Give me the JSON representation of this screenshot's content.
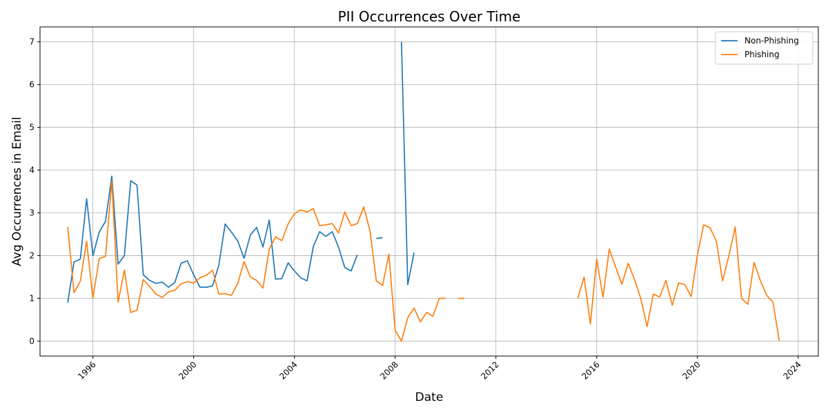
{
  "chart_data": {
    "type": "line",
    "title": "PII Occurrences Over Time",
    "xlabel": "Date",
    "ylabel": "Avg Occurrences in Email",
    "xlim": [
      1993.9,
      2024.8
    ],
    "ylim": [
      -0.35,
      7.35
    ],
    "x_ticks": [
      1996,
      2000,
      2004,
      2008,
      2012,
      2016,
      2020,
      2024
    ],
    "x_tick_labels": [
      "1996",
      "2000",
      "2004",
      "2008",
      "2012",
      "2016",
      "2020",
      "2024"
    ],
    "y_ticks": [
      0,
      1,
      2,
      3,
      4,
      5,
      6,
      7
    ],
    "y_tick_labels": [
      "0",
      "1",
      "2",
      "3",
      "4",
      "5",
      "6",
      "7"
    ],
    "grid": true,
    "legend_position": "top-right",
    "series": [
      {
        "name": "Non-Phishing",
        "color": "#1f77b4",
        "points": [
          [
            1995.0,
            0.9
          ],
          [
            1995.25,
            1.85
          ],
          [
            1995.5,
            1.92
          ],
          [
            1995.75,
            3.33
          ],
          [
            1996.0,
            2.0
          ],
          [
            1996.25,
            2.55
          ],
          [
            1996.5,
            2.8
          ],
          [
            1996.75,
            3.86
          ],
          [
            1997.0,
            1.8
          ],
          [
            1997.25,
            2.0
          ],
          [
            1997.5,
            3.75
          ],
          [
            1997.75,
            3.65
          ],
          [
            1998.0,
            1.55
          ],
          [
            1998.25,
            1.42
          ],
          [
            1998.5,
            1.35
          ],
          [
            1998.75,
            1.38
          ],
          [
            1999.0,
            1.26
          ],
          [
            1999.25,
            1.37
          ],
          [
            1999.5,
            1.82
          ],
          [
            1999.75,
            1.88
          ],
          [
            2000.0,
            1.55
          ],
          [
            2000.25,
            1.26
          ],
          [
            2000.5,
            1.26
          ],
          [
            2000.75,
            1.29
          ],
          [
            2001.0,
            1.78
          ],
          [
            2001.25,
            2.74
          ],
          [
            2001.5,
            2.55
          ],
          [
            2001.75,
            2.34
          ],
          [
            2002.0,
            1.94
          ],
          [
            2002.25,
            2.48
          ],
          [
            2002.5,
            2.66
          ],
          [
            2002.75,
            2.2
          ],
          [
            2003.0,
            2.83
          ],
          [
            2003.25,
            1.45
          ],
          [
            2003.5,
            1.46
          ],
          [
            2003.75,
            1.83
          ],
          [
            2004.0,
            1.64
          ],
          [
            2004.25,
            1.48
          ],
          [
            2004.5,
            1.41
          ],
          [
            2004.75,
            2.21
          ],
          [
            2005.0,
            2.56
          ],
          [
            2005.25,
            2.45
          ],
          [
            2005.5,
            2.56
          ],
          [
            2005.75,
            2.2
          ],
          [
            2006.0,
            1.72
          ],
          [
            2006.25,
            1.64
          ],
          [
            2006.5,
            2.02
          ],
          null,
          [
            2007.25,
            2.4
          ],
          [
            2007.5,
            2.42
          ],
          null,
          [
            2008.25,
            7.0
          ],
          [
            2008.5,
            1.32
          ],
          [
            2008.75,
            2.07
          ]
        ]
      },
      {
        "name": "Phishing",
        "color": "#ff7f0e",
        "points": [
          [
            1995.0,
            2.67
          ],
          [
            1995.25,
            1.13
          ],
          [
            1995.5,
            1.4
          ],
          [
            1995.75,
            2.34
          ],
          [
            1996.0,
            1.0
          ],
          [
            1996.25,
            1.93
          ],
          [
            1996.5,
            1.98
          ],
          [
            1996.75,
            3.74
          ],
          [
            1997.0,
            0.91
          ],
          [
            1997.25,
            1.66
          ],
          [
            1997.5,
            0.67
          ],
          [
            1997.75,
            0.72
          ],
          [
            1998.0,
            1.44
          ],
          [
            1998.25,
            1.28
          ],
          [
            1998.5,
            1.1
          ],
          [
            1998.75,
            1.02
          ],
          [
            1999.0,
            1.15
          ],
          [
            1999.25,
            1.19
          ],
          [
            1999.5,
            1.34
          ],
          [
            1999.75,
            1.39
          ],
          [
            2000.0,
            1.36
          ],
          [
            2000.25,
            1.48
          ],
          [
            2000.5,
            1.54
          ],
          [
            2000.75,
            1.66
          ],
          [
            2001.0,
            1.1
          ],
          [
            2001.25,
            1.11
          ],
          [
            2001.5,
            1.07
          ],
          [
            2001.75,
            1.35
          ],
          [
            2002.0,
            1.86
          ],
          [
            2002.25,
            1.5
          ],
          [
            2002.5,
            1.42
          ],
          [
            2002.75,
            1.24
          ],
          [
            2003.0,
            2.15
          ],
          [
            2003.25,
            2.44
          ],
          [
            2003.5,
            2.35
          ],
          [
            2003.75,
            2.74
          ],
          [
            2004.0,
            2.98
          ],
          [
            2004.25,
            3.07
          ],
          [
            2004.5,
            3.02
          ],
          [
            2004.75,
            3.1
          ],
          [
            2005.0,
            2.7
          ],
          [
            2005.25,
            2.72
          ],
          [
            2005.5,
            2.75
          ],
          [
            2005.75,
            2.53
          ],
          [
            2006.0,
            3.02
          ],
          [
            2006.25,
            2.7
          ],
          [
            2006.5,
            2.75
          ],
          [
            2006.75,
            3.14
          ],
          [
            2007.0,
            2.58
          ],
          [
            2007.25,
            1.41
          ],
          [
            2007.5,
            1.3
          ],
          [
            2007.75,
            2.03
          ],
          [
            2008.0,
            0.25
          ],
          [
            2008.25,
            0.0
          ],
          [
            2008.5,
            0.55
          ],
          [
            2008.75,
            0.77
          ],
          [
            2009.0,
            0.45
          ],
          [
            2009.25,
            0.67
          ],
          [
            2009.5,
            0.58
          ],
          [
            2009.75,
            1.0
          ],
          [
            2010.0,
            1.0
          ],
          null,
          [
            2010.5,
            1.0
          ],
          [
            2010.75,
            1.0
          ],
          null,
          [
            2015.25,
            1.0
          ],
          [
            2015.5,
            1.5
          ],
          [
            2015.75,
            0.4
          ],
          [
            2016.0,
            1.92
          ],
          [
            2016.25,
            1.03
          ],
          [
            2016.5,
            2.15
          ],
          [
            2016.75,
            1.74
          ],
          [
            2017.0,
            1.33
          ],
          [
            2017.25,
            1.82
          ],
          [
            2017.5,
            1.44
          ],
          [
            2017.75,
            1.0
          ],
          [
            2018.0,
            0.34
          ],
          [
            2018.25,
            1.1
          ],
          [
            2018.5,
            1.03
          ],
          [
            2018.75,
            1.42
          ],
          [
            2019.0,
            0.84
          ],
          [
            2019.25,
            1.36
          ],
          [
            2019.5,
            1.32
          ],
          [
            2019.75,
            1.04
          ],
          [
            2020.0,
            2.02
          ],
          [
            2020.25,
            2.72
          ],
          [
            2020.5,
            2.65
          ],
          [
            2020.75,
            2.34
          ],
          [
            2021.0,
            1.41
          ],
          [
            2021.25,
            2.0
          ],
          [
            2021.5,
            2.67
          ],
          [
            2021.75,
            1.0
          ],
          [
            2022.0,
            0.86
          ],
          [
            2022.25,
            1.84
          ],
          [
            2022.5,
            1.41
          ],
          [
            2022.75,
            1.07
          ],
          [
            2023.0,
            0.91
          ],
          [
            2023.25,
            0.0
          ]
        ]
      }
    ]
  }
}
